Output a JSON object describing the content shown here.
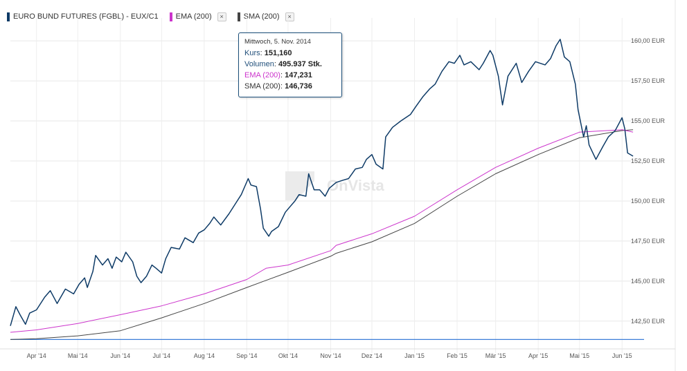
{
  "legend": {
    "items": [
      {
        "label": "EURO BUND FUTURES (FGBL) - EUX/C1",
        "color": "#0d3a66",
        "close": false
      },
      {
        "label": "EMA (200)",
        "color": "#cc33cc",
        "close": true
      },
      {
        "label": "SMA (200)",
        "color": "#444444",
        "close": true
      }
    ],
    "close_glyph": "×"
  },
  "tooltip": {
    "date": "Mittwoch, 5. Nov. 2014",
    "rows": [
      {
        "label": "Kurs",
        "value": "151,160",
        "kind": "price"
      },
      {
        "label": "Volumen",
        "value": "495.937 Stk.",
        "kind": "price"
      },
      {
        "label": "EMA (200)",
        "value": "147,231",
        "kind": "ema"
      },
      {
        "label": "SMA (200)",
        "value": "146,736",
        "kind": "sma"
      }
    ]
  },
  "watermark": "OnVista",
  "chart_data": {
    "type": "line",
    "y_unit": "EUR",
    "ylim": [
      140.85,
      161.0
    ],
    "yticks": [
      {
        "v": 142.5,
        "label": "142,50 EUR"
      },
      {
        "v": 145.0,
        "label": "145,00 EUR"
      },
      {
        "v": 147.5,
        "label": "147,50 EUR"
      },
      {
        "v": 150.0,
        "label": "150,00 EUR"
      },
      {
        "v": 152.5,
        "label": "152,50 EUR"
      },
      {
        "v": 155.0,
        "label": "155,00 EUR"
      },
      {
        "v": 157.5,
        "label": "157,50 EUR"
      },
      {
        "v": 160.0,
        "label": "160,00 EUR"
      }
    ],
    "xlim": [
      "2014-03-13",
      "2015-06-17"
    ],
    "xticks": [
      {
        "d": "2014-04-01",
        "label": "Apr '14"
      },
      {
        "d": "2014-05-01",
        "label": "Mai '14"
      },
      {
        "d": "2014-06-01",
        "label": "Jun '14"
      },
      {
        "d": "2014-07-01",
        "label": "Jul '14"
      },
      {
        "d": "2014-08-01",
        "label": "Aug '14"
      },
      {
        "d": "2014-09-01",
        "label": "Sep '14"
      },
      {
        "d": "2014-10-01",
        "label": "Okt '14"
      },
      {
        "d": "2014-11-01",
        "label": "Nov '14"
      },
      {
        "d": "2014-12-01",
        "label": "Dez '14"
      },
      {
        "d": "2015-01-01",
        "label": "Jan '15"
      },
      {
        "d": "2015-02-01",
        "label": "Feb '15"
      },
      {
        "d": "2015-03-01",
        "label": "Mär '15"
      },
      {
        "d": "2015-04-01",
        "label": "Apr '15"
      },
      {
        "d": "2015-05-01",
        "label": "Mai '15"
      },
      {
        "d": "2015-06-01",
        "label": "Jun '15"
      }
    ],
    "grid": true,
    "series": [
      {
        "name": "EURO BUND FUTURES (FGBL) - EUX/C1",
        "color": "#0d3a66",
        "points": [
          [
            "2014-03-13",
            142.2
          ],
          [
            "2014-03-17",
            143.4
          ],
          [
            "2014-03-20",
            142.9
          ],
          [
            "2014-03-24",
            142.3
          ],
          [
            "2014-03-27",
            143.0
          ],
          [
            "2014-04-01",
            143.2
          ],
          [
            "2014-04-07",
            144.0
          ],
          [
            "2014-04-11",
            144.4
          ],
          [
            "2014-04-16",
            143.6
          ],
          [
            "2014-04-22",
            144.5
          ],
          [
            "2014-04-28",
            144.2
          ],
          [
            "2014-05-02",
            144.8
          ],
          [
            "2014-05-06",
            145.2
          ],
          [
            "2014-05-08",
            144.6
          ],
          [
            "2014-05-12",
            145.6
          ],
          [
            "2014-05-14",
            146.6
          ],
          [
            "2014-05-19",
            146.0
          ],
          [
            "2014-05-23",
            146.4
          ],
          [
            "2014-05-26",
            145.8
          ],
          [
            "2014-05-29",
            146.5
          ],
          [
            "2014-06-02",
            146.2
          ],
          [
            "2014-06-05",
            146.8
          ],
          [
            "2014-06-10",
            146.2
          ],
          [
            "2014-06-13",
            145.3
          ],
          [
            "2014-06-16",
            144.9
          ],
          [
            "2014-06-20",
            145.3
          ],
          [
            "2014-06-24",
            146.0
          ],
          [
            "2014-06-27",
            145.8
          ],
          [
            "2014-07-01",
            145.5
          ],
          [
            "2014-07-04",
            146.4
          ],
          [
            "2014-07-08",
            147.1
          ],
          [
            "2014-07-14",
            147.0
          ],
          [
            "2014-07-18",
            147.7
          ],
          [
            "2014-07-24",
            147.4
          ],
          [
            "2014-07-28",
            148.0
          ],
          [
            "2014-08-01",
            148.2
          ],
          [
            "2014-08-05",
            148.6
          ],
          [
            "2014-08-08",
            149.0
          ],
          [
            "2014-08-13",
            148.5
          ],
          [
            "2014-08-19",
            149.2
          ],
          [
            "2014-08-25",
            150.0
          ],
          [
            "2014-08-28",
            150.4
          ],
          [
            "2014-09-02",
            151.4
          ],
          [
            "2014-09-04",
            151.0
          ],
          [
            "2014-09-08",
            150.9
          ],
          [
            "2014-09-11",
            149.5
          ],
          [
            "2014-09-13",
            148.3
          ],
          [
            "2014-09-17",
            147.8
          ],
          [
            "2014-09-19",
            148.1
          ],
          [
            "2014-09-24",
            148.4
          ],
          [
            "2014-09-29",
            149.3
          ],
          [
            "2014-10-02",
            149.6
          ],
          [
            "2014-10-06",
            150.0
          ],
          [
            "2014-10-09",
            150.4
          ],
          [
            "2014-10-14",
            150.3
          ],
          [
            "2014-10-16",
            151.7
          ],
          [
            "2014-10-20",
            150.7
          ],
          [
            "2014-10-24",
            150.7
          ],
          [
            "2014-10-28",
            150.3
          ],
          [
            "2014-10-31",
            150.8
          ],
          [
            "2014-11-05",
            151.16
          ],
          [
            "2014-11-10",
            151.3
          ],
          [
            "2014-11-14",
            151.4
          ],
          [
            "2014-11-19",
            152.0
          ],
          [
            "2014-11-24",
            152.1
          ],
          [
            "2014-11-27",
            152.6
          ],
          [
            "2014-12-01",
            152.9
          ],
          [
            "2014-12-04",
            152.3
          ],
          [
            "2014-12-09",
            152.0
          ],
          [
            "2014-12-11",
            154.0
          ],
          [
            "2014-12-16",
            154.6
          ],
          [
            "2014-12-22",
            155.0
          ],
          [
            "2014-12-29",
            155.4
          ],
          [
            "2015-01-02",
            155.9
          ],
          [
            "2015-01-07",
            156.5
          ],
          [
            "2015-01-12",
            157.0
          ],
          [
            "2015-01-16",
            157.3
          ],
          [
            "2015-01-21",
            158.1
          ],
          [
            "2015-01-26",
            158.7
          ],
          [
            "2015-01-30",
            158.6
          ],
          [
            "2015-02-03",
            159.1
          ],
          [
            "2015-02-06",
            158.5
          ],
          [
            "2015-02-11",
            158.7
          ],
          [
            "2015-02-17",
            158.2
          ],
          [
            "2015-02-20",
            158.6
          ],
          [
            "2015-02-25",
            159.4
          ],
          [
            "2015-02-27",
            159.1
          ],
          [
            "2015-03-03",
            157.8
          ],
          [
            "2015-03-06",
            156.0
          ],
          [
            "2015-03-10",
            157.8
          ],
          [
            "2015-03-16",
            158.6
          ],
          [
            "2015-03-20",
            157.4
          ],
          [
            "2015-03-25",
            158.1
          ],
          [
            "2015-03-30",
            158.7
          ],
          [
            "2015-04-06",
            158.5
          ],
          [
            "2015-04-10",
            158.9
          ],
          [
            "2015-04-14",
            159.7
          ],
          [
            "2015-04-17",
            160.1
          ],
          [
            "2015-04-20",
            159.0
          ],
          [
            "2015-04-24",
            158.7
          ],
          [
            "2015-04-28",
            157.3
          ],
          [
            "2015-04-30",
            155.7
          ],
          [
            "2015-05-04",
            154.0
          ],
          [
            "2015-05-06",
            154.7
          ],
          [
            "2015-05-08",
            153.5
          ],
          [
            "2015-05-13",
            152.6
          ],
          [
            "2015-05-18",
            153.4
          ],
          [
            "2015-05-22",
            154.0
          ],
          [
            "2015-05-27",
            154.4
          ],
          [
            "2015-06-01",
            155.2
          ],
          [
            "2015-06-03",
            154.5
          ],
          [
            "2015-06-05",
            153.0
          ],
          [
            "2015-06-09",
            152.8
          ]
        ]
      },
      {
        "name": "EMA (200)",
        "color": "#cc33cc",
        "points": [
          [
            "2014-03-13",
            141.8
          ],
          [
            "2014-04-01",
            141.95
          ],
          [
            "2014-05-01",
            142.35
          ],
          [
            "2014-06-01",
            142.9
          ],
          [
            "2014-07-01",
            143.45
          ],
          [
            "2014-08-01",
            144.2
          ],
          [
            "2014-09-01",
            145.1
          ],
          [
            "2014-09-15",
            145.8
          ],
          [
            "2014-10-01",
            146.0
          ],
          [
            "2014-11-01",
            146.9
          ],
          [
            "2014-11-05",
            147.231
          ],
          [
            "2014-12-01",
            147.95
          ],
          [
            "2015-01-01",
            149.05
          ],
          [
            "2015-02-01",
            150.7
          ],
          [
            "2015-03-01",
            152.1
          ],
          [
            "2015-04-01",
            153.3
          ],
          [
            "2015-05-01",
            154.3
          ],
          [
            "2015-06-01",
            154.45
          ],
          [
            "2015-06-09",
            154.3
          ]
        ]
      },
      {
        "name": "SMA (200)",
        "color": "#444444",
        "points": [
          [
            "2014-03-13",
            141.35
          ],
          [
            "2014-04-01",
            141.4
          ],
          [
            "2014-05-01",
            141.58
          ],
          [
            "2014-06-01",
            141.9
          ],
          [
            "2014-07-01",
            142.7
          ],
          [
            "2014-08-01",
            143.6
          ],
          [
            "2014-09-01",
            144.6
          ],
          [
            "2014-10-01",
            145.55
          ],
          [
            "2014-11-01",
            146.55
          ],
          [
            "2014-11-05",
            146.736
          ],
          [
            "2014-12-01",
            147.45
          ],
          [
            "2015-01-01",
            148.6
          ],
          [
            "2015-02-01",
            150.3
          ],
          [
            "2015-03-01",
            151.7
          ],
          [
            "2015-04-01",
            152.9
          ],
          [
            "2015-05-01",
            153.95
          ],
          [
            "2015-06-01",
            154.4
          ],
          [
            "2015-06-09",
            154.45
          ]
        ]
      }
    ],
    "reference_line": {
      "value": 141.35,
      "color": "#3b7dd8"
    }
  }
}
